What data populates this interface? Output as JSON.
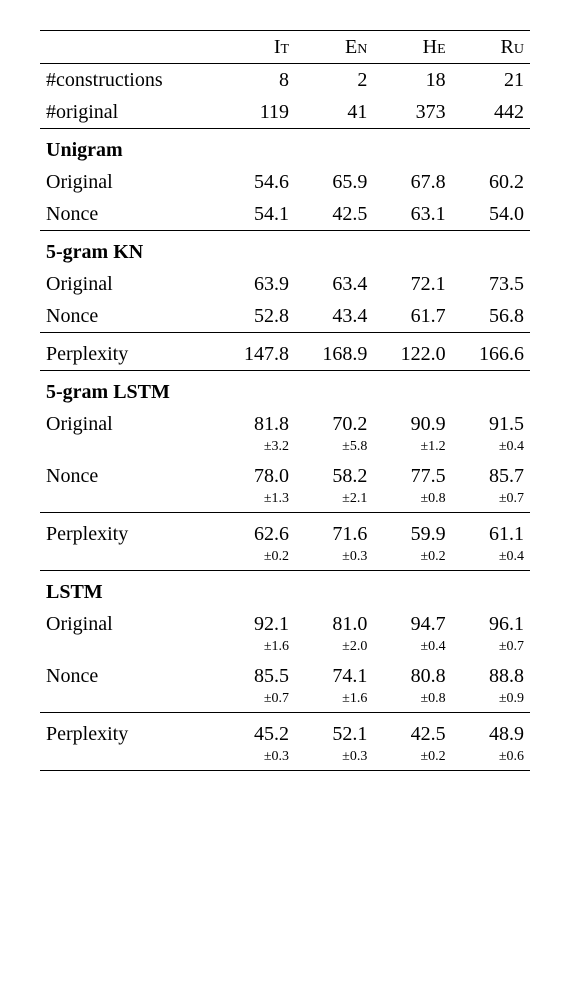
{
  "columns": [
    "It",
    "En",
    "He",
    "Ru"
  ],
  "header_rows": [
    {
      "label": "#constructions",
      "vals": [
        "8",
        "2",
        "18",
        "21"
      ]
    },
    {
      "label": "#original",
      "vals": [
        "119",
        "41",
        "373",
        "442"
      ]
    }
  ],
  "sections": [
    {
      "name": "Unigram",
      "rows": [
        {
          "label": "Original",
          "vals": [
            "54.6",
            "65.9",
            "67.8",
            "60.2"
          ]
        },
        {
          "label": "Nonce",
          "vals": [
            "54.1",
            "42.5",
            "63.1",
            "54.0"
          ]
        }
      ]
    },
    {
      "name": "5-gram KN",
      "rows": [
        {
          "label": "Original",
          "vals": [
            "63.9",
            "63.4",
            "72.1",
            "73.5"
          ]
        },
        {
          "label": "Nonce",
          "vals": [
            "52.8",
            "43.4",
            "61.7",
            "56.8"
          ]
        }
      ],
      "perplexity": {
        "vals": [
          "147.8",
          "168.9",
          "122.0",
          "166.6"
        ]
      }
    },
    {
      "name": "5-gram LSTM",
      "rows": [
        {
          "label": "Original",
          "vals": [
            "81.8",
            "70.2",
            "90.9",
            "91.5"
          ],
          "stds": [
            "±3.2",
            "±5.8",
            "±1.2",
            "±0.4"
          ]
        },
        {
          "label": "Nonce",
          "vals": [
            "78.0",
            "58.2",
            "77.5",
            "85.7"
          ],
          "stds": [
            "±1.3",
            "±2.1",
            "±0.8",
            "±0.7"
          ]
        }
      ],
      "perplexity": {
        "vals": [
          "62.6",
          "71.6",
          "59.9",
          "61.1"
        ],
        "stds": [
          "±0.2",
          "±0.3",
          "±0.2",
          "±0.4"
        ]
      }
    },
    {
      "name": "LSTM",
      "rows": [
        {
          "label": "Original",
          "vals": [
            "92.1",
            "81.0",
            "94.7",
            "96.1"
          ],
          "stds": [
            "±1.6",
            "±2.0",
            "±0.4",
            "±0.7"
          ]
        },
        {
          "label": "Nonce",
          "vals": [
            "85.5",
            "74.1",
            "80.8",
            "88.8"
          ],
          "stds": [
            "±0.7",
            "±1.6",
            "±0.8",
            "±0.9"
          ]
        }
      ],
      "perplexity": {
        "vals": [
          "45.2",
          "52.1",
          "42.5",
          "48.9"
        ],
        "stds": [
          "±0.3",
          "±0.3",
          "±0.2",
          "±0.6"
        ]
      }
    }
  ],
  "perplexity_label": "Perplexity",
  "style": {
    "font_family": "Times New Roman",
    "body_fontsize": 20,
    "std_fontsize": 14,
    "text_color": "#000000",
    "background_color": "#ffffff",
    "rule_color": "#000000"
  }
}
